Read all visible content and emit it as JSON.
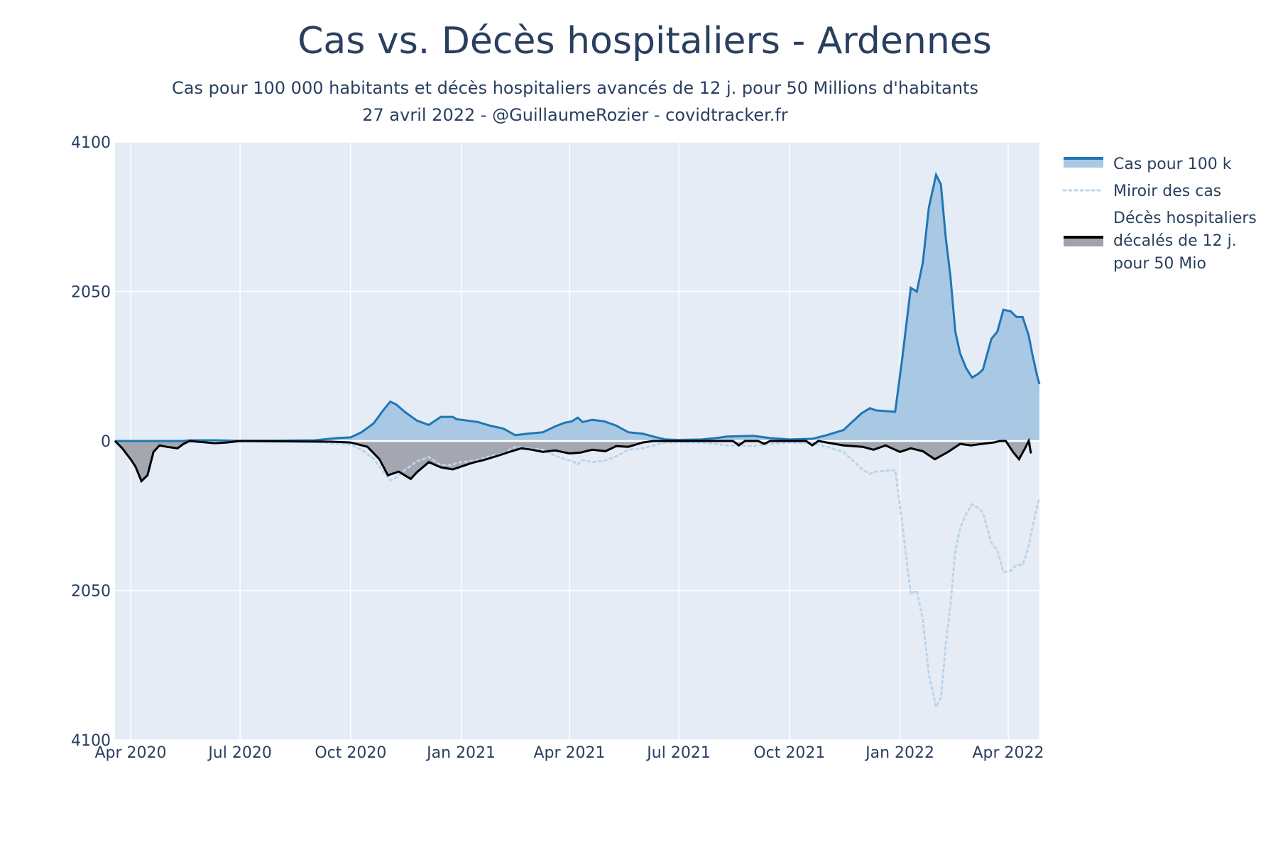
{
  "chart_data": {
    "type": "area",
    "title": "Cas vs. Décès hospitaliers - Ardennes",
    "subtitle_line1": "Cas pour 100 000 habitants et décès hospitaliers avancés de 12 j. pour 50 Millions d'habitants",
    "subtitle_line2": "27 avril 2022 - @GuillaumeRozier - covidtracker.fr",
    "y_ticks": [
      {
        "value": 4100,
        "label": "4100"
      },
      {
        "value": 2050,
        "label": "2050"
      },
      {
        "value": 0,
        "label": "0"
      },
      {
        "value": -2050,
        "label": "2050"
      },
      {
        "value": -4100,
        "label": "4100"
      }
    ],
    "x_ticks": [
      {
        "date": "2020-04-01",
        "label": "Apr 2020"
      },
      {
        "date": "2020-07-01",
        "label": "Jul 2020"
      },
      {
        "date": "2020-10-01",
        "label": "Oct 2020"
      },
      {
        "date": "2021-01-01",
        "label": "Jan 2021"
      },
      {
        "date": "2021-04-01",
        "label": "Apr 2021"
      },
      {
        "date": "2021-07-01",
        "label": "Jul 2021"
      },
      {
        "date": "2021-10-01",
        "label": "Oct 2021"
      },
      {
        "date": "2022-01-01",
        "label": "Jan 2022"
      },
      {
        "date": "2022-04-01",
        "label": "Apr 2022"
      }
    ],
    "xlim": [
      "2020-03-19",
      "2022-04-27"
    ],
    "ylim": [
      -4100,
      4100
    ],
    "grid": true,
    "legend_position": "right",
    "colors": {
      "cases_line": "#1f77b4",
      "cases_fill": "#a8c8e4",
      "mirror": "#bcd4ea",
      "deaths_line": "#000000",
      "deaths_fill": "#a0a3ab",
      "plot_bg": "#e5ecf6",
      "grid": "#ffffff"
    },
    "series": [
      {
        "name": "Cas pour 100 k",
        "style": "line+fill",
        "points": [
          [
            "2020-03-19",
            0
          ],
          [
            "2020-05-15",
            0
          ],
          [
            "2020-05-20",
            10
          ],
          [
            "2020-06-10",
            10
          ],
          [
            "2020-07-01",
            2
          ],
          [
            "2020-08-01",
            5
          ],
          [
            "2020-09-01",
            10
          ],
          [
            "2020-09-20",
            40
          ],
          [
            "2020-10-01",
            50
          ],
          [
            "2020-10-10",
            120
          ],
          [
            "2020-10-20",
            240
          ],
          [
            "2020-10-28",
            420
          ],
          [
            "2020-11-03",
            540
          ],
          [
            "2020-11-08",
            500
          ],
          [
            "2020-11-15",
            400
          ],
          [
            "2020-11-25",
            280
          ],
          [
            "2020-12-05",
            220
          ],
          [
            "2020-12-15",
            330
          ],
          [
            "2020-12-25",
            330
          ],
          [
            "2020-12-28",
            300
          ],
          [
            "2021-01-15",
            260
          ],
          [
            "2021-01-25",
            210
          ],
          [
            "2021-02-05",
            170
          ],
          [
            "2021-02-15",
            80
          ],
          [
            "2021-02-25",
            100
          ],
          [
            "2021-03-10",
            120
          ],
          [
            "2021-03-20",
            200
          ],
          [
            "2021-03-28",
            250
          ],
          [
            "2021-04-03",
            270
          ],
          [
            "2021-04-08",
            320
          ],
          [
            "2021-04-12",
            260
          ],
          [
            "2021-04-20",
            290
          ],
          [
            "2021-04-30",
            270
          ],
          [
            "2021-05-10",
            210
          ],
          [
            "2021-05-20",
            120
          ],
          [
            "2021-06-01",
            100
          ],
          [
            "2021-06-10",
            60
          ],
          [
            "2021-06-20",
            20
          ],
          [
            "2021-07-01",
            15
          ],
          [
            "2021-07-20",
            20
          ],
          [
            "2021-08-01",
            40
          ],
          [
            "2021-08-10",
            60
          ],
          [
            "2021-09-01",
            70
          ],
          [
            "2021-09-15",
            40
          ],
          [
            "2021-10-01",
            20
          ],
          [
            "2021-10-20",
            30
          ],
          [
            "2021-11-01",
            80
          ],
          [
            "2021-11-15",
            150
          ],
          [
            "2021-11-30",
            380
          ],
          [
            "2021-12-07",
            450
          ],
          [
            "2021-12-12",
            420
          ],
          [
            "2021-12-28",
            400
          ],
          [
            "2022-01-03",
            1150
          ],
          [
            "2022-01-07",
            1700
          ],
          [
            "2022-01-10",
            2100
          ],
          [
            "2022-01-15",
            2050
          ],
          [
            "2022-01-20",
            2450
          ],
          [
            "2022-01-25",
            3200
          ],
          [
            "2022-01-31",
            3650
          ],
          [
            "2022-02-04",
            3520
          ],
          [
            "2022-02-08",
            2800
          ],
          [
            "2022-02-12",
            2250
          ],
          [
            "2022-02-16",
            1500
          ],
          [
            "2022-02-20",
            1200
          ],
          [
            "2022-02-25",
            1000
          ],
          [
            "2022-03-02",
            870
          ],
          [
            "2022-03-07",
            920
          ],
          [
            "2022-03-11",
            980
          ],
          [
            "2022-03-18",
            1400
          ],
          [
            "2022-03-23",
            1500
          ],
          [
            "2022-03-28",
            1800
          ],
          [
            "2022-04-03",
            1780
          ],
          [
            "2022-04-08",
            1700
          ],
          [
            "2022-04-13",
            1700
          ],
          [
            "2022-04-18",
            1450
          ],
          [
            "2022-04-21",
            1200
          ],
          [
            "2022-04-25",
            900
          ],
          [
            "2022-04-27",
            780
          ]
        ]
      },
      {
        "name": "Miroir des cas",
        "style": "dotted",
        "mirror_of": "Cas pour 100 k"
      },
      {
        "name": "Décès hospitaliers décalés de 12 j. pour 50 Mio",
        "legend_lines": [
          "Décès hospitaliers",
          "décalés de 12 j.",
          "pour 50 Mio"
        ],
        "style": "line+fill",
        "points": [
          [
            "2020-03-19",
            0
          ],
          [
            "2020-03-25",
            -100
          ],
          [
            "2020-04-01",
            -250
          ],
          [
            "2020-04-05",
            -350
          ],
          [
            "2020-04-10",
            -550
          ],
          [
            "2020-04-15",
            -470
          ],
          [
            "2020-04-20",
            -150
          ],
          [
            "2020-04-25",
            -60
          ],
          [
            "2020-05-01",
            -80
          ],
          [
            "2020-05-10",
            -100
          ],
          [
            "2020-05-15",
            -40
          ],
          [
            "2020-05-20",
            0
          ],
          [
            "2020-06-10",
            -30
          ],
          [
            "2020-06-20",
            -20
          ],
          [
            "2020-07-01",
            0
          ],
          [
            "2020-09-15",
            -10
          ],
          [
            "2020-10-01",
            -20
          ],
          [
            "2020-10-15",
            -80
          ],
          [
            "2020-10-25",
            -250
          ],
          [
            "2020-11-01",
            -470
          ],
          [
            "2020-11-10",
            -420
          ],
          [
            "2020-11-20",
            -520
          ],
          [
            "2020-11-25",
            -430
          ],
          [
            "2020-12-05",
            -290
          ],
          [
            "2020-12-15",
            -360
          ],
          [
            "2020-12-25",
            -390
          ],
          [
            "2021-01-10",
            -300
          ],
          [
            "2021-01-20",
            -260
          ],
          [
            "2021-02-01",
            -200
          ],
          [
            "2021-02-10",
            -150
          ],
          [
            "2021-02-20",
            -100
          ],
          [
            "2021-03-01",
            -120
          ],
          [
            "2021-03-10",
            -150
          ],
          [
            "2021-03-20",
            -130
          ],
          [
            "2021-04-01",
            -170
          ],
          [
            "2021-04-10",
            -160
          ],
          [
            "2021-04-20",
            -120
          ],
          [
            "2021-05-01",
            -140
          ],
          [
            "2021-05-10",
            -70
          ],
          [
            "2021-05-20",
            -80
          ],
          [
            "2021-06-01",
            -20
          ],
          [
            "2021-06-10",
            0
          ],
          [
            "2021-08-15",
            0
          ],
          [
            "2021-08-20",
            -60
          ],
          [
            "2021-08-25",
            0
          ],
          [
            "2021-09-05",
            0
          ],
          [
            "2021-09-10",
            -40
          ],
          [
            "2021-09-15",
            0
          ],
          [
            "2021-10-15",
            0
          ],
          [
            "2021-10-20",
            -60
          ],
          [
            "2021-10-25",
            0
          ],
          [
            "2021-11-15",
            -60
          ],
          [
            "2021-12-01",
            -80
          ],
          [
            "2021-12-10",
            -120
          ],
          [
            "2021-12-20",
            -60
          ],
          [
            "2022-01-01",
            -150
          ],
          [
            "2022-01-10",
            -100
          ],
          [
            "2022-01-20",
            -140
          ],
          [
            "2022-01-30",
            -250
          ],
          [
            "2022-02-10",
            -150
          ],
          [
            "2022-02-20",
            -40
          ],
          [
            "2022-03-01",
            -60
          ],
          [
            "2022-03-10",
            -40
          ],
          [
            "2022-03-20",
            -20
          ],
          [
            "2022-03-25",
            0
          ],
          [
            "2022-03-30",
            0
          ],
          [
            "2022-04-05",
            -150
          ],
          [
            "2022-04-10",
            -250
          ],
          [
            "2022-04-15",
            -100
          ],
          [
            "2022-04-18",
            0
          ],
          [
            "2022-04-20",
            -170
          ]
        ]
      }
    ]
  }
}
